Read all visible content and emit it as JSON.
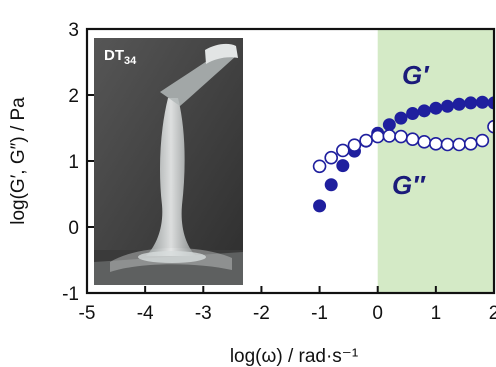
{
  "chart_data": {
    "type": "scatter",
    "title": "",
    "xlabel": "log(ω) / rad·s⁻¹",
    "ylabel": "log(G′, G″) / Pa",
    "xlim": [
      -5,
      2
    ],
    "ylim": [
      -1,
      3
    ],
    "x_ticks": [
      "-5",
      "-4",
      "-3",
      "-2",
      "-1",
      "0",
      "1",
      "2"
    ],
    "y_ticks": [
      "-1",
      "0",
      "1",
      "2",
      "3"
    ],
    "highlight_band": {
      "x_from": 0,
      "x_to": 2,
      "color": "#cfe8c0"
    },
    "inset_label": {
      "main": "DT",
      "sub": "34"
    },
    "series": [
      {
        "name": "G′",
        "marker": "filled-circle",
        "color": "#1f1f9e",
        "x": [
          -1.0,
          -0.8,
          -0.6,
          -0.4,
          -0.2,
          0.0,
          0.2,
          0.4,
          0.6,
          0.8,
          1.0,
          1.2,
          1.4,
          1.6,
          1.8,
          2.0
        ],
        "y": [
          0.32,
          0.64,
          0.93,
          1.15,
          1.3,
          1.42,
          1.55,
          1.65,
          1.72,
          1.76,
          1.8,
          1.83,
          1.86,
          1.88,
          1.89,
          1.88
        ]
      },
      {
        "name": "G″",
        "marker": "open-circle",
        "color": "#1f1f9e",
        "x": [
          -1.0,
          -0.8,
          -0.6,
          -0.4,
          -0.2,
          0.0,
          0.2,
          0.4,
          0.6,
          0.8,
          1.0,
          1.2,
          1.4,
          1.6,
          1.8,
          2.0
        ],
        "y": [
          0.92,
          1.05,
          1.16,
          1.24,
          1.31,
          1.37,
          1.38,
          1.37,
          1.33,
          1.29,
          1.26,
          1.25,
          1.25,
          1.26,
          1.31,
          1.52
        ]
      }
    ]
  }
}
